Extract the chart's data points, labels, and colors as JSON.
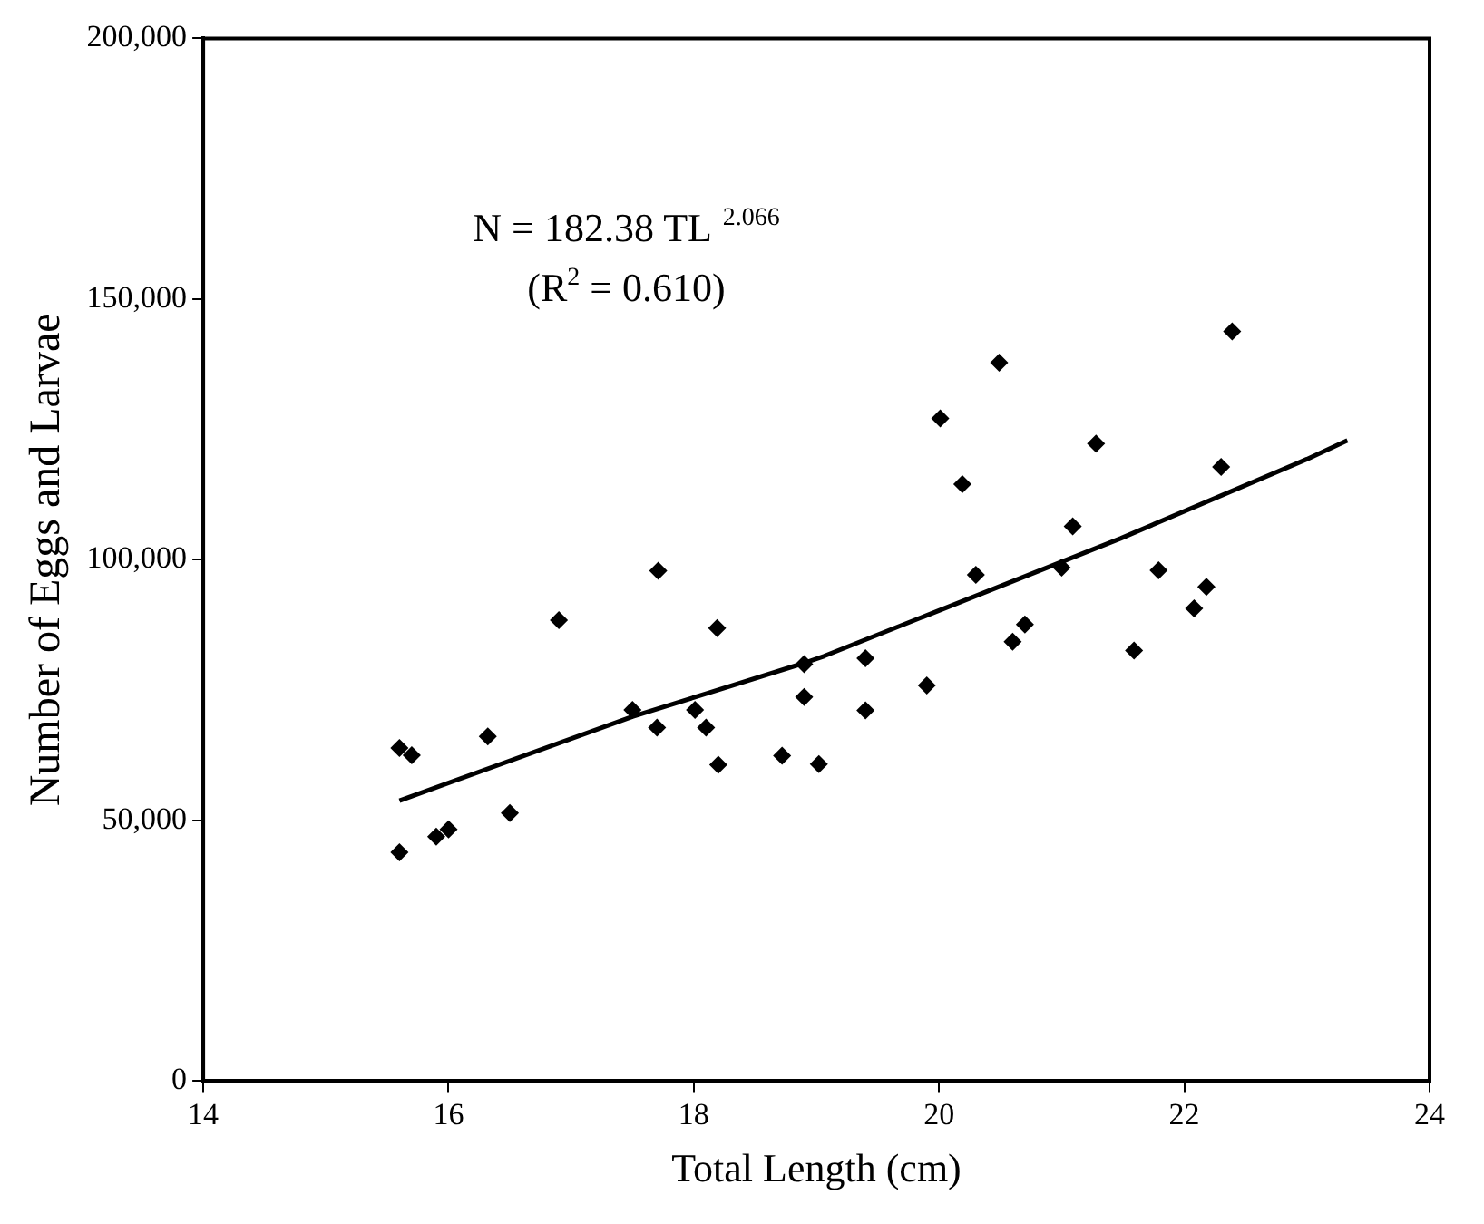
{
  "chart_data": {
    "type": "scatter",
    "xlabel": "Total Length (cm)",
    "ylabel": "Number of Eggs and Larvae",
    "annotations": [
      "N = 182.38 TL $^{2.066}$",
      "(R$^{2}$ = 0.610)"
    ],
    "xlim": [
      14,
      24
    ],
    "xticks": [
      14,
      16,
      18,
      20,
      22,
      24
    ],
    "ylim": [
      0,
      200000
    ],
    "yticks": [
      {
        "value": 0,
        "label": "0"
      },
      {
        "value": 50000,
        "label": "50,000"
      },
      {
        "value": 100000,
        "label": "100,000"
      },
      {
        "value": 150000,
        "label": "150,000"
      },
      {
        "value": 200000,
        "label": "200,000"
      }
    ],
    "grid": false,
    "legend": false,
    "series": [
      {
        "type": "scatter",
        "color": "#000000",
        "marker": "diamond",
        "x": [
          15.6,
          15.7,
          15.6,
          15.9,
          16.0,
          16.32,
          16.5,
          16.9,
          17.5,
          17.71,
          17.7,
          18.19,
          18.01,
          18.1,
          18.2,
          18.72,
          18.9,
          18.9,
          19.02,
          19.4,
          19.4,
          19.9,
          20.01,
          20.19,
          20.3,
          20.49,
          20.6,
          20.7,
          21.0,
          21.09,
          21.28,
          21.59,
          21.79,
          22.08,
          22.18,
          22.3,
          22.39
        ],
        "values": [
          63900,
          62500,
          43900,
          46900,
          48300,
          66100,
          51400,
          88400,
          71200,
          97900,
          67800,
          86900,
          71200,
          67800,
          60700,
          62400,
          73700,
          80000,
          60800,
          81100,
          71100,
          75900,
          127100,
          114500,
          97100,
          137800,
          84300,
          87600,
          98500,
          106400,
          122300,
          82600,
          98000,
          90700,
          94800,
          117800,
          143800
        ]
      },
      {
        "type": "line",
        "color": "#000000",
        "marker": "none",
        "line_style": "solid",
        "x": [
          15.6,
          17.5,
          18.9,
          19.06,
          21.48,
          23.0,
          23.33
        ],
        "values": [
          53800,
          69900,
          80200,
          81500,
          104100,
          119300,
          122900
        ]
      }
    ]
  }
}
